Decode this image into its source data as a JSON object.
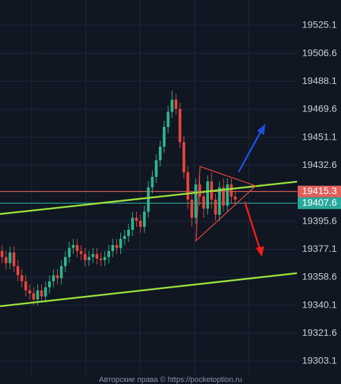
{
  "chart_data": {
    "type": "candlestick",
    "open": [
      19376,
      19372,
      19368,
      19375,
      19366,
      19360,
      19356,
      19350,
      19348,
      19344,
      19350,
      19346,
      19352,
      19356,
      19360,
      19358,
      19366,
      19372,
      19378,
      19380,
      19376,
      19374,
      19370,
      19372,
      19374,
      19371,
      19370,
      19372,
      19376,
      19380,
      19378,
      19384,
      19386,
      19390,
      19398,
      19396,
      19392,
      19402,
      19418,
      19425,
      19436,
      19445,
      19458,
      19468,
      19476,
      19470,
      19448,
      19428,
      19410,
      19398,
      19420,
      19412,
      19404,
      19422,
      19410,
      19400,
      19418,
      19406,
      19420,
      19412
    ],
    "high": [
      19380,
      19376,
      19379,
      19379,
      19370,
      19364,
      19360,
      19354,
      19352,
      19354,
      19354,
      19356,
      19360,
      19364,
      19364,
      19370,
      19376,
      19382,
      19384,
      19384,
      19380,
      19378,
      19376,
      19378,
      19378,
      19375,
      19376,
      19380,
      19384,
      19384,
      19388,
      19390,
      19394,
      19402,
      19402,
      19400,
      19406,
      19422,
      19429,
      19440,
      19449,
      19462,
      19472,
      19482,
      19480,
      19474,
      19452,
      19432,
      19414,
      19424,
      19426,
      19416,
      19426,
      19428,
      19414,
      19422,
      19424,
      19424,
      19424,
      19416
    ],
    "low": [
      19368,
      19364,
      19364,
      19362,
      19356,
      19352,
      19346,
      19344,
      19340,
      19340,
      19342,
      19342,
      19348,
      19352,
      19354,
      19354,
      19362,
      19368,
      19374,
      19372,
      19370,
      19366,
      19366,
      19368,
      19367,
      19366,
      19366,
      19368,
      19372,
      19374,
      19374,
      19380,
      19382,
      19386,
      19392,
      19388,
      19388,
      19398,
      19414,
      19421,
      19432,
      19441,
      19454,
      19464,
      19466,
      19444,
      19424,
      19404,
      19392,
      19394,
      19406,
      19398,
      19400,
      19404,
      19396,
      19396,
      19402,
      19402,
      19408,
      19406
    ],
    "close": [
      19372,
      19368,
      19375,
      19366,
      19360,
      19356,
      19350,
      19348,
      19344,
      19350,
      19346,
      19352,
      19356,
      19360,
      19358,
      19366,
      19372,
      19378,
      19380,
      19376,
      19374,
      19370,
      19372,
      19374,
      19371,
      19370,
      19372,
      19376,
      19380,
      19378,
      19384,
      19386,
      19390,
      19398,
      19396,
      19392,
      19402,
      19418,
      19425,
      19436,
      19445,
      19458,
      19468,
      19476,
      19470,
      19448,
      19428,
      19410,
      19398,
      19420,
      19412,
      19404,
      19422,
      19410,
      19400,
      19418,
      19406,
      19420,
      19412,
      19410
    ],
    "up_color": "#2fb58c",
    "down_color": "#e5453f",
    "ylim": [
      19288.1,
      19541.9
    ],
    "yticks": [
      19303.1,
      19321.6,
      19340.1,
      19358.6,
      19377.1,
      19395.6,
      19432.6,
      19451.1,
      19469.6,
      19488.1,
      19506.6,
      19525.1
    ],
    "price_lines": [
      {
        "value": 19415.3,
        "color": "#e0605c"
      },
      {
        "value": 19407.6,
        "color": "#2aa89a"
      }
    ],
    "footer": "Авторские права © https://pocketoption.ru"
  }
}
